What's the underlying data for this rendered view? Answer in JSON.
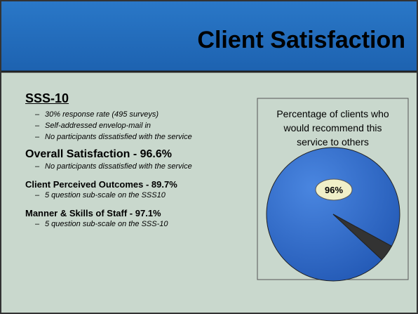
{
  "title": "Client Satisfaction",
  "sections": [
    {
      "heading": "SSS-10",
      "bullets": [
        "30% response rate (495 surveys)",
        "Self-addressed envelop-mail in",
        "No participants dissatisfied with the service"
      ]
    },
    {
      "heading": "Overall Satisfaction - 96.6%",
      "bullets": [
        "No participants dissatisfied with the service"
      ]
    },
    {
      "heading": "Client Perceived Outcomes - 89.7%",
      "bullets": [
        "5 question sub-scale on the SSS10"
      ]
    },
    {
      "heading": "Manner & Skills of Staff - 97.1%",
      "bullets": [
        "5 question sub-scale on the SSS-10"
      ]
    }
  ],
  "chart_data": {
    "type": "pie",
    "title": "Percentage of clients who would recommend this service to others",
    "values": [
      96,
      4
    ],
    "value_labels": [
      "96%",
      null
    ],
    "colors": [
      "#2f66c8",
      "#333333"
    ]
  }
}
